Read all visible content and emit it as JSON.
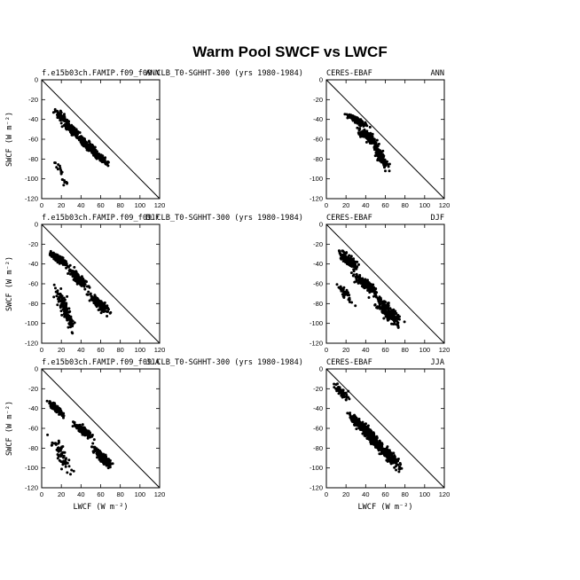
{
  "title": "Warm Pool SWCF vs LWCF",
  "chart_data": [
    {
      "type": "scatter",
      "row": 0,
      "col": 0,
      "left_label": "f.e15b03ch.FAMIP.f09_f09.CLB_T0-SGHHT-300 (yrs 1980-1984)",
      "right_label": "ANN",
      "ylabel": "SWCF (W m⁻²)",
      "xlabel": "",
      "xlim": [
        0,
        120
      ],
      "ylim": [
        -120,
        0
      ],
      "xticks": [
        0,
        20,
        40,
        60,
        80,
        100,
        120
      ],
      "yticks": [
        0,
        -20,
        -40,
        -60,
        -80,
        -100,
        -120
      ],
      "reference_line": "y = -x",
      "clusters": [
        {
          "x": [
            10,
            30
          ],
          "y": [
            -50,
            -25
          ],
          "n": 80
        },
        {
          "x": [
            20,
            45
          ],
          "y": [
            -65,
            -40
          ],
          "n": 140
        },
        {
          "x": [
            35,
            60
          ],
          "y": [
            -80,
            -55
          ],
          "n": 160
        },
        {
          "x": [
            50,
            70
          ],
          "y": [
            -88,
            -70
          ],
          "n": 90
        },
        {
          "x": [
            10,
            30
          ],
          "y": [
            -115,
            -70
          ],
          "n": 20
        }
      ]
    },
    {
      "type": "scatter",
      "row": 0,
      "col": 1,
      "left_label": "CERES-EBAF",
      "right_label": "ANN",
      "ylabel": "",
      "xlabel": "",
      "xlim": [
        0,
        120
      ],
      "ylim": [
        -120,
        0
      ],
      "xticks": [
        0,
        20,
        40,
        60,
        80,
        100,
        120
      ],
      "yticks": [
        0,
        -20,
        -40,
        -60,
        -80,
        -100,
        -120
      ],
      "reference_line": "y = -x",
      "clusters": [
        {
          "x": [
            18,
            45
          ],
          "y": [
            -50,
            -32
          ],
          "n": 130
        },
        {
          "x": [
            30,
            55
          ],
          "y": [
            -70,
            -45
          ],
          "n": 160
        },
        {
          "x": [
            45,
            65
          ],
          "y": [
            -95,
            -60
          ],
          "n": 140
        }
      ]
    },
    {
      "type": "scatter",
      "row": 1,
      "col": 0,
      "left_label": "f.e15b03ch.FAMIP.f09_f09.CLB_T0-SGHHT-300 (yrs 1980-1984)",
      "right_label": "DJF",
      "ylabel": "SWCF (W m⁻²)",
      "xlabel": "",
      "xlim": [
        0,
        120
      ],
      "ylim": [
        -120,
        0
      ],
      "xticks": [
        0,
        20,
        40,
        60,
        80,
        100,
        120
      ],
      "yticks": [
        0,
        -20,
        -40,
        -60,
        -80,
        -100,
        -120
      ],
      "reference_line": "y = -x",
      "clusters": [
        {
          "x": [
            5,
            30
          ],
          "y": [
            -45,
            -25
          ],
          "n": 140
        },
        {
          "x": [
            25,
            50
          ],
          "y": [
            -70,
            -40
          ],
          "n": 160
        },
        {
          "x": [
            45,
            72
          ],
          "y": [
            -95,
            -65
          ],
          "n": 160
        },
        {
          "x": [
            12,
            35
          ],
          "y": [
            -115,
            -55
          ],
          "n": 150
        }
      ]
    },
    {
      "type": "scatter",
      "row": 1,
      "col": 1,
      "left_label": "CERES-EBAF",
      "right_label": "DJF",
      "ylabel": "",
      "xlabel": "",
      "xlim": [
        0,
        120
      ],
      "ylim": [
        -120,
        0
      ],
      "xticks": [
        0,
        20,
        40,
        60,
        80,
        100,
        120
      ],
      "yticks": [
        0,
        -20,
        -40,
        -60,
        -80,
        -100,
        -120
      ],
      "reference_line": "y = -x",
      "clusters": [
        {
          "x": [
            10,
            35
          ],
          "y": [
            -50,
            -22
          ],
          "n": 170
        },
        {
          "x": [
            25,
            55
          ],
          "y": [
            -75,
            -45
          ],
          "n": 170
        },
        {
          "x": [
            45,
            80
          ],
          "y": [
            -110,
            -65
          ],
          "n": 180
        },
        {
          "x": [
            8,
            30
          ],
          "y": [
            -85,
            -55
          ],
          "n": 40
        }
      ]
    },
    {
      "type": "scatter",
      "row": 2,
      "col": 0,
      "left_label": "f.e15b03ch.FAMIP.f09_f09.CLB_T0-SGHHT-300 (yrs 1980-1984)",
      "right_label": "JJA",
      "ylabel": "SWCF (W m⁻²)",
      "xlabel": "LWCF (W m⁻²)",
      "xlim": [
        0,
        120
      ],
      "ylim": [
        -120,
        0
      ],
      "xticks": [
        0,
        20,
        40,
        60,
        80,
        100,
        120
      ],
      "yticks": [
        0,
        -20,
        -40,
        -60,
        -80,
        -100,
        -120
      ],
      "reference_line": "y = -x",
      "clusters": [
        {
          "x": [
            5,
            25
          ],
          "y": [
            -50,
            -30
          ],
          "n": 140
        },
        {
          "x": [
            30,
            55
          ],
          "y": [
            -75,
            -50
          ],
          "n": 130
        },
        {
          "x": [
            50,
            75
          ],
          "y": [
            -105,
            -75
          ],
          "n": 160
        },
        {
          "x": [
            5,
            35
          ],
          "y": [
            -115,
            -60
          ],
          "n": 60
        }
      ]
    },
    {
      "type": "scatter",
      "row": 2,
      "col": 1,
      "left_label": "CERES-EBAF",
      "right_label": "JJA",
      "ylabel": "",
      "xlabel": "LWCF (W m⁻²)",
      "xlim": [
        0,
        120
      ],
      "ylim": [
        -120,
        0
      ],
      "xticks": [
        0,
        20,
        40,
        60,
        80,
        100,
        120
      ],
      "yticks": [
        0,
        -20,
        -40,
        -60,
        -80,
        -100,
        -120
      ],
      "reference_line": "y = -x",
      "clusters": [
        {
          "x": [
            5,
            25
          ],
          "y": [
            -35,
            -10
          ],
          "n": 60
        },
        {
          "x": [
            20,
            45
          ],
          "y": [
            -70,
            -40
          ],
          "n": 130
        },
        {
          "x": [
            35,
            60
          ],
          "y": [
            -90,
            -50
          ],
          "n": 200
        },
        {
          "x": [
            50,
            80
          ],
          "y": [
            -108,
            -70
          ],
          "n": 150
        }
      ]
    }
  ]
}
